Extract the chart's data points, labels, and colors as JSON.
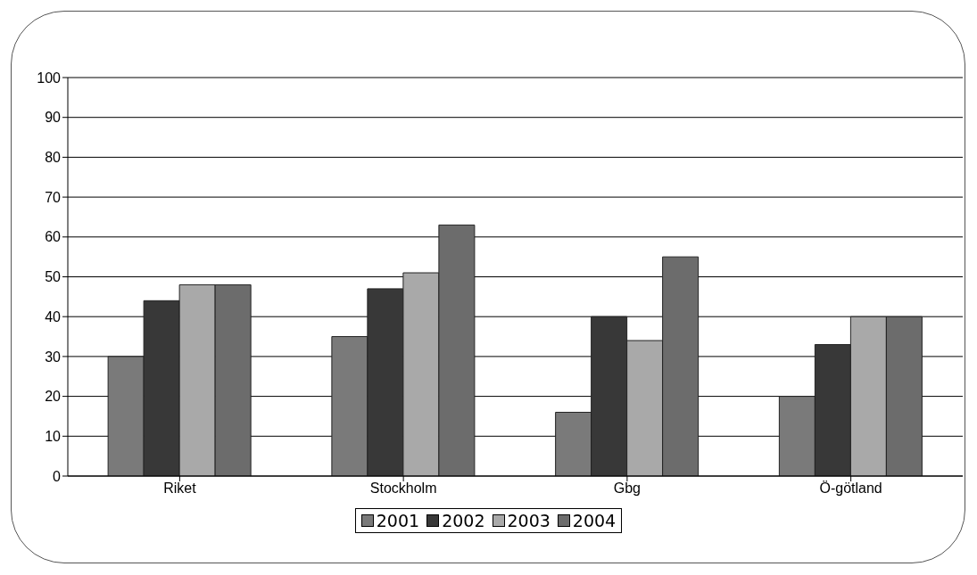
{
  "chart_data": {
    "type": "bar",
    "categories": [
      "Riket",
      "Stockholm",
      "Gbg",
      "Ö-götland"
    ],
    "series": [
      {
        "name": "2001",
        "color": "#7a7a7a",
        "values": [
          30,
          35,
          16,
          20
        ]
      },
      {
        "name": "2002",
        "color": "#383838",
        "values": [
          44,
          47,
          40,
          33
        ]
      },
      {
        "name": "2003",
        "color": "#a9a9a9",
        "values": [
          48,
          51,
          34,
          40
        ]
      },
      {
        "name": "2004",
        "color": "#6c6c6c",
        "values": [
          48,
          63,
          55,
          40
        ]
      }
    ],
    "ylim": [
      0,
      100
    ],
    "yticks": [
      0,
      10,
      20,
      30,
      40,
      50,
      60,
      70,
      80,
      90,
      100
    ],
    "grid": "y",
    "legend": "bottom"
  }
}
